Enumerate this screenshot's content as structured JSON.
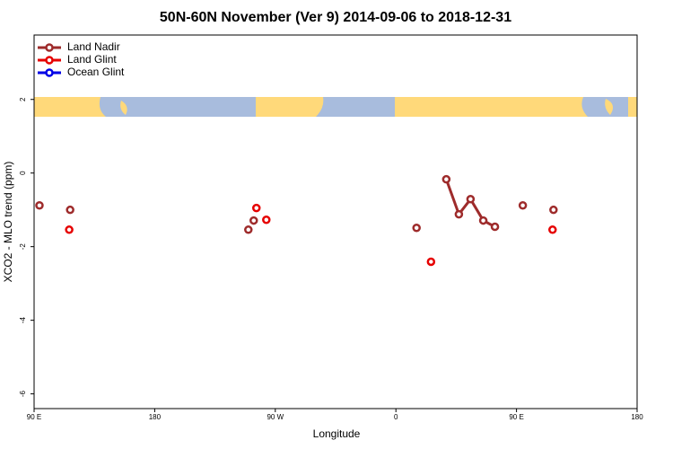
{
  "chart_data": {
    "type": "line",
    "title": "50N-60N November (Ver 9)   2014-09-06 to 2018-12-31",
    "x_label": "Longitude",
    "y_label": "XCO2 - MLO trend (ppm)",
    "xlim": [
      90,
      540
    ],
    "xticks": [
      {
        "value": 90,
        "label": "90 E"
      },
      180,
      {
        "value": 270,
        "label": "90 W"
      },
      {
        "value": 360,
        "label": "0"
      },
      {
        "value": 450,
        "label": "90 E"
      },
      180
    ],
    "ylim": [
      -6.4,
      3.75
    ],
    "yticks": [
      -6,
      -4,
      -2,
      0,
      2
    ],
    "legend": "top-left",
    "series": [
      {
        "name": "Land Nadir",
        "color": "#9e2b2b",
        "x": [
          94.0,
          null,
          116.9,
          null,
          249.9,
          null,
          253.9,
          null,
          375.4,
          null,
          397.6,
          407.0,
          415.7,
          425.2,
          433.9,
          null,
          454.7,
          null,
          477.6
        ],
        "values": [
          -0.88,
          null,
          -1.0,
          null,
          -1.54,
          null,
          -1.29,
          null,
          -1.49,
          null,
          -0.17,
          -1.12,
          -0.71,
          -1.29,
          -1.46,
          null,
          -0.88,
          null,
          -1.0
        ]
      },
      {
        "name": "Land Glint",
        "color": "#e60000",
        "x": [
          116.2,
          null,
          255.9,
          null,
          263.3,
          null,
          386.2,
          null,
          476.9
        ],
        "values": [
          -1.54,
          null,
          -0.95,
          null,
          -1.27,
          null,
          -2.41,
          null,
          -1.54
        ]
      },
      {
        "name": "Ocean Glint",
        "color": "#0000e6",
        "x": [],
        "values": []
      }
    ]
  }
}
